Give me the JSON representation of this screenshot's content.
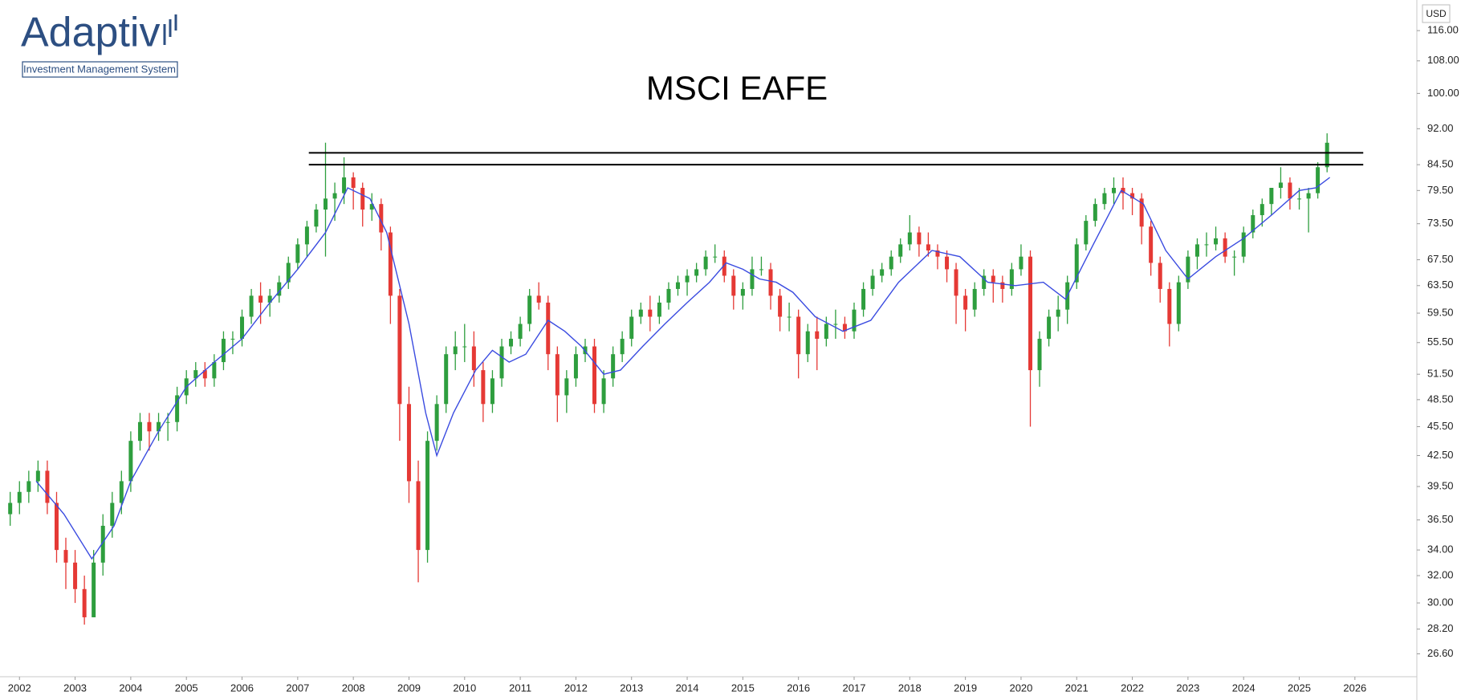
{
  "logo": {
    "name": "Adaptiv",
    "tagline": "Investment Management System"
  },
  "chart_data": {
    "type": "candlestick",
    "title": "MSCI EAFE",
    "currency": "USD",
    "log": true,
    "up_color": "#2e9e3e",
    "down_color": "#e53935",
    "xlim": [
      2001.65,
      2027.07
    ],
    "xticks": [
      2002,
      2003,
      2004,
      2005,
      2006,
      2007,
      2008,
      2009,
      2010,
      2011,
      2012,
      2013,
      2014,
      2015,
      2016,
      2017,
      2018,
      2019,
      2020,
      2021,
      2022,
      2023,
      2024,
      2025,
      2026
    ],
    "ylim": [
      25.2,
      124.7
    ],
    "yticks": [
      {
        "value": 26.6,
        "label": "26.60"
      },
      {
        "value": 28.2,
        "label": "28.20"
      },
      {
        "value": 30,
        "label": "30.00"
      },
      {
        "value": 32,
        "label": "32.00"
      },
      {
        "value": 34,
        "label": "34.00"
      },
      {
        "value": 36.5,
        "label": "36.50"
      },
      {
        "value": 39.5,
        "label": "39.50"
      },
      {
        "value": 42.5,
        "label": "42.50"
      },
      {
        "value": 45.5,
        "label": "45.50"
      },
      {
        "value": 48.5,
        "label": "48.50"
      },
      {
        "value": 51.5,
        "label": "51.50"
      },
      {
        "value": 55.5,
        "label": "55.50"
      },
      {
        "value": 59.5,
        "label": "59.50"
      },
      {
        "value": 63.5,
        "label": "63.50"
      },
      {
        "value": 67.5,
        "label": "67.50"
      },
      {
        "value": 73.5,
        "label": "73.50"
      },
      {
        "value": 79.5,
        "label": "79.50"
      },
      {
        "value": 84.5,
        "label": "84.50"
      },
      {
        "value": 92,
        "label": "92.00"
      },
      {
        "value": 100,
        "label": "100.00"
      },
      {
        "value": 108,
        "label": "108.00"
      },
      {
        "value": 116,
        "label": "116.00"
      }
    ],
    "x": [
      2001.833,
      2002,
      2002.167,
      2002.333,
      2002.5,
      2002.667,
      2002.833,
      2003,
      2003.167,
      2003.333,
      2003.5,
      2003.667,
      2003.833,
      2004,
      2004.167,
      2004.333,
      2004.5,
      2004.667,
      2004.833,
      2005,
      2005.167,
      2005.333,
      2005.5,
      2005.667,
      2005.833,
      2006,
      2006.167,
      2006.333,
      2006.5,
      2006.667,
      2006.833,
      2007,
      2007.167,
      2007.333,
      2007.5,
      2007.667,
      2007.833,
      2008,
      2008.167,
      2008.333,
      2008.5,
      2008.667,
      2008.833,
      2009,
      2009.167,
      2009.333,
      2009.5,
      2009.667,
      2009.833,
      2010,
      2010.167,
      2010.333,
      2010.5,
      2010.667,
      2010.833,
      2011,
      2011.167,
      2011.333,
      2011.5,
      2011.667,
      2011.833,
      2012,
      2012.167,
      2012.333,
      2012.5,
      2012.667,
      2012.833,
      2013,
      2013.167,
      2013.333,
      2013.5,
      2013.667,
      2013.833,
      2014,
      2014.167,
      2014.333,
      2014.5,
      2014.667,
      2014.833,
      2015,
      2015.167,
      2015.333,
      2015.5,
      2015.667,
      2015.833,
      2016,
      2016.167,
      2016.333,
      2016.5,
      2016.667,
      2016.833,
      2017,
      2017.167,
      2017.333,
      2017.5,
      2017.667,
      2017.833,
      2018,
      2018.167,
      2018.333,
      2018.5,
      2018.667,
      2018.833,
      2019,
      2019.167,
      2019.333,
      2019.5,
      2019.667,
      2019.833,
      2020,
      2020.167,
      2020.333,
      2020.5,
      2020.667,
      2020.833,
      2021,
      2021.167,
      2021.333,
      2021.5,
      2021.667,
      2021.833,
      2022,
      2022.167,
      2022.333,
      2022.5,
      2022.667,
      2022.833,
      2023,
      2023.167,
      2023.333,
      2023.5,
      2023.667,
      2023.833,
      2024,
      2024.167,
      2024.333,
      2024.5,
      2024.667,
      2024.833,
      2025,
      2025.167,
      2025.333,
      2025.5
    ],
    "open": [
      37,
      38,
      39,
      40,
      41,
      38,
      34,
      33,
      31,
      29,
      33,
      36,
      38,
      40,
      44,
      46,
      45,
      46,
      46,
      49,
      51,
      52,
      51,
      53,
      56,
      56,
      59,
      62,
      61,
      62,
      64,
      67,
      70,
      73,
      76,
      78,
      79,
      82,
      80,
      76,
      77,
      72,
      62,
      48,
      40,
      34,
      44,
      48,
      54,
      55,
      55,
      52,
      48,
      51,
      55,
      56,
      58,
      62,
      61,
      54,
      49,
      51,
      54,
      55,
      48,
      51,
      54,
      56,
      59,
      60,
      59,
      61,
      63,
      64,
      65,
      66,
      68,
      68,
      65,
      62,
      63,
      66,
      66,
      62,
      59,
      59,
      54,
      57,
      56,
      58,
      58,
      57,
      60,
      63,
      65,
      66,
      68,
      70,
      72,
      70,
      69,
      68,
      66,
      62,
      60,
      63,
      65,
      64,
      63,
      66,
      68,
      52,
      56,
      59,
      60,
      64,
      70,
      74,
      77,
      79,
      80,
      79,
      78,
      73,
      67,
      63,
      58,
      64,
      68,
      70,
      70,
      71,
      68,
      68,
      72,
      75,
      77,
      80,
      81,
      78,
      78,
      79,
      84
    ],
    "high": [
      39,
      40,
      41,
      42,
      42,
      39,
      35,
      34,
      32,
      34,
      37,
      39,
      41,
      45,
      47,
      47,
      47,
      47,
      50,
      52,
      53,
      53,
      54,
      57,
      57,
      60,
      63,
      64,
      63,
      65,
      68,
      71,
      74,
      77,
      89,
      81,
      86,
      83,
      81,
      79,
      78,
      73,
      63,
      50,
      42,
      45,
      49,
      55,
      57,
      58,
      57,
      53,
      52,
      56,
      57,
      59,
      63,
      64,
      62,
      55,
      52,
      55,
      56,
      56,
      52,
      55,
      57,
      60,
      61,
      62,
      62,
      64,
      65,
      66,
      67,
      69,
      70,
      69,
      66,
      64,
      68,
      68,
      67,
      63,
      61,
      60,
      58,
      59,
      59,
      60,
      59,
      61,
      64,
      66,
      67,
      69,
      71,
      75,
      73,
      72,
      70,
      69,
      67,
      63,
      64,
      66,
      66,
      65,
      67,
      70,
      69,
      57,
      60,
      62,
      65,
      71,
      75,
      78,
      80,
      82,
      82,
      80,
      79,
      74,
      68,
      64,
      65,
      69,
      71,
      72,
      73,
      72,
      69,
      73,
      76,
      78,
      80,
      84,
      82,
      80,
      80,
      85,
      91
    ],
    "low": [
      36,
      37,
      38,
      39,
      37,
      33,
      31,
      30,
      28.5,
      29,
      32,
      35,
      37,
      39,
      43,
      43,
      44,
      44,
      45,
      48,
      50,
      50,
      50,
      52,
      54,
      55,
      58,
      58,
      59,
      61,
      63,
      66,
      68,
      72,
      68,
      74,
      77,
      76,
      73,
      74,
      69,
      58,
      44,
      38,
      31.5,
      33,
      43,
      47,
      52,
      53,
      50,
      46,
      47,
      50,
      54,
      55,
      57,
      60,
      52,
      46,
      47,
      50,
      53,
      47,
      47,
      50,
      53,
      55,
      58,
      57,
      58,
      60,
      62,
      62,
      64,
      65,
      67,
      64,
      60,
      60,
      62,
      65,
      60,
      57,
      57,
      51,
      53,
      52,
      55,
      56,
      56,
      56,
      59,
      62,
      64,
      65,
      67,
      69,
      68,
      68,
      66,
      64,
      58,
      57,
      59,
      62,
      61,
      61,
      62,
      65,
      45.5,
      50,
      55,
      57,
      58,
      63,
      69,
      73,
      76,
      77,
      76,
      75,
      70,
      65,
      61,
      55,
      57,
      63,
      66,
      68,
      69,
      67,
      65,
      67,
      71,
      73,
      75,
      78,
      76,
      76,
      72,
      78,
      83
    ],
    "close": [
      38,
      39,
      40,
      41,
      38,
      34,
      33,
      31,
      29,
      33,
      36,
      38,
      40,
      44,
      46,
      45,
      46,
      46,
      49,
      51,
      52,
      51,
      53,
      56,
      56,
      59,
      62,
      61,
      62,
      64,
      67,
      70,
      73,
      76,
      78,
      79,
      82,
      80,
      76,
      77,
      72,
      62,
      48,
      40,
      34,
      44,
      48,
      54,
      55,
      55,
      52,
      48,
      51,
      55,
      56,
      58,
      62,
      61,
      54,
      49,
      51,
      54,
      55,
      48,
      51,
      54,
      56,
      59,
      60,
      59,
      61,
      63,
      64,
      65,
      66,
      68,
      68,
      65,
      62,
      63,
      66,
      66,
      62,
      59,
      59,
      54,
      57,
      56,
      58,
      58,
      57,
      60,
      63,
      65,
      66,
      68,
      70,
      72,
      70,
      69,
      68,
      66,
      62,
      60,
      63,
      65,
      64,
      63,
      66,
      68,
      52,
      56,
      59,
      60,
      64,
      70,
      74,
      77,
      79,
      80,
      79,
      78,
      73,
      67,
      63,
      58,
      64,
      68,
      70,
      70,
      71,
      68,
      68,
      72,
      75,
      77,
      80,
      81,
      78,
      78,
      79,
      84,
      89
    ],
    "lines": [
      {
        "color": "#3a4be0",
        "x": [
          2002.3,
          2002.8,
          2003.3,
          2003.7,
          2004,
          2004.5,
          2005,
          2005.5,
          2006,
          2006.5,
          2007,
          2007.5,
          2007.9,
          2008.3,
          2008.6,
          2009,
          2009.3,
          2009.5,
          2009.8,
          2010.2,
          2010.5,
          2010.8,
          2011.1,
          2011.5,
          2011.8,
          2012.1,
          2012.5,
          2012.8,
          2013.2,
          2013.6,
          2014,
          2014.4,
          2014.7,
          2015.0,
          2015.3,
          2015.6,
          2015.9,
          2016.3,
          2016.8,
          2017.3,
          2017.8,
          2018.4,
          2018.9,
          2019.4,
          2019.9,
          2020.4,
          2020.8,
          2021.3,
          2021.8,
          2022.2,
          2022.6,
          2023.0,
          2023.5,
          2024.0,
          2024.5,
          2025.0,
          2025.3,
          2025.55
        ],
        "values": [
          40,
          37,
          33.3,
          36,
          40,
          45,
          50,
          53,
          56,
          61,
          66,
          72,
          80,
          78,
          72,
          58,
          47,
          42.5,
          47,
          52,
          54.5,
          53,
          54,
          58.5,
          57,
          55,
          51.5,
          52,
          55,
          58,
          61,
          64,
          67,
          66,
          64.5,
          64,
          62.5,
          59,
          57,
          58.5,
          64,
          69,
          68,
          64,
          63.5,
          64,
          61.5,
          70,
          79.5,
          77,
          69,
          64.5,
          68,
          71,
          75,
          79.5,
          80,
          82
        ]
      }
    ],
    "hlines": [
      {
        "value": 86.9,
        "x": [
          2007.2,
          2026.15
        ],
        "color": "#000000"
      },
      {
        "value": 84.5,
        "x": [
          2007.2,
          2026.15
        ],
        "color": "#000000"
      }
    ]
  }
}
